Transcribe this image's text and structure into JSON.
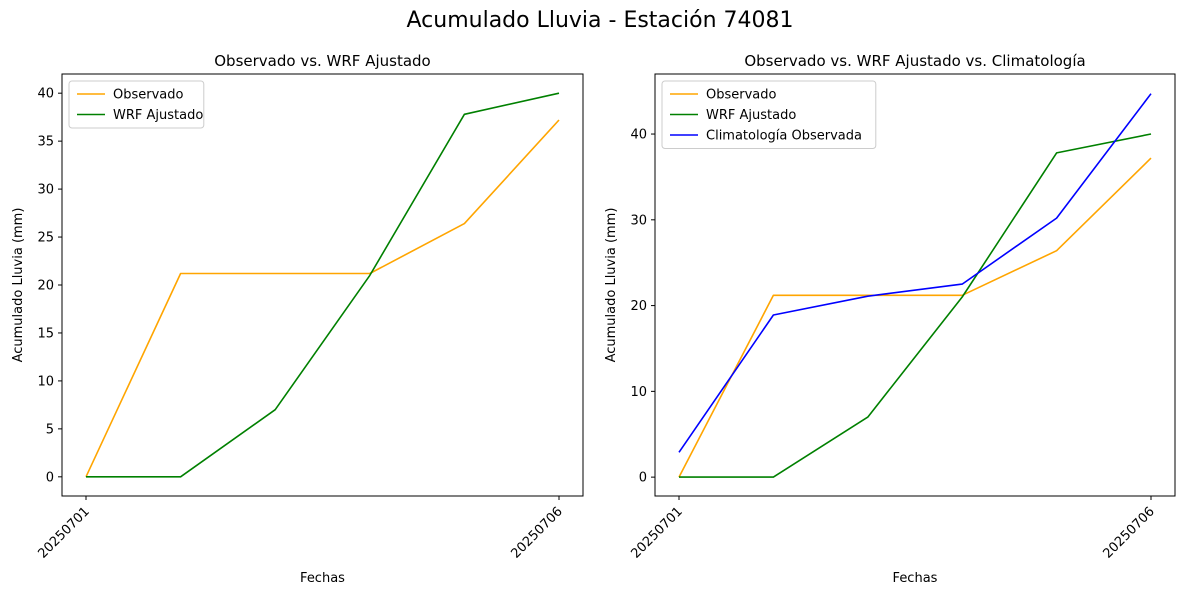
{
  "suptitle": "Acumulado Lluvia - Estación 74081",
  "colors": {
    "Observado": "#ffa500",
    "WRF Ajustado": "#008000",
    "Climatología Observada": "#0000ff"
  },
  "chart_data": [
    {
      "type": "line",
      "title": "Observado vs. WRF Ajustado",
      "xlabel": "Fechas",
      "ylabel": "Acumulado Lluvia (mm)",
      "x": [
        "20250701",
        "20250702",
        "20250703",
        "20250704",
        "20250705",
        "20250706"
      ],
      "xticks": [
        "20250701",
        "20250706"
      ],
      "yticks": [
        0,
        5,
        10,
        15,
        20,
        25,
        30,
        35,
        40
      ],
      "ylim": [
        -2,
        42
      ],
      "legend": "top-left",
      "series": [
        {
          "name": "Observado",
          "values": [
            0,
            21.2,
            21.2,
            21.2,
            26.4,
            37.2
          ]
        },
        {
          "name": "WRF Ajustado",
          "values": [
            0,
            0,
            7.0,
            21.0,
            37.8,
            40.0
          ]
        }
      ]
    },
    {
      "type": "line",
      "title": "Observado vs. WRF Ajustado vs. Climatología",
      "xlabel": "Fechas",
      "ylabel": "Acumulado Lluvia (mm)",
      "x": [
        "20250701",
        "20250702",
        "20250703",
        "20250704",
        "20250705",
        "20250706"
      ],
      "xticks": [
        "20250701",
        "20250706"
      ],
      "yticks": [
        0,
        10,
        20,
        30,
        40
      ],
      "ylim": [
        -2.2,
        47
      ],
      "legend": "top-left",
      "series": [
        {
          "name": "Observado",
          "values": [
            0,
            21.2,
            21.2,
            21.2,
            26.4,
            37.2
          ]
        },
        {
          "name": "WRF Ajustado",
          "values": [
            0,
            0,
            7.0,
            21.0,
            37.8,
            40.0
          ]
        },
        {
          "name": "Climatología Observada",
          "values": [
            2.9,
            18.9,
            21.1,
            22.5,
            30.2,
            44.7
          ]
        }
      ]
    }
  ]
}
